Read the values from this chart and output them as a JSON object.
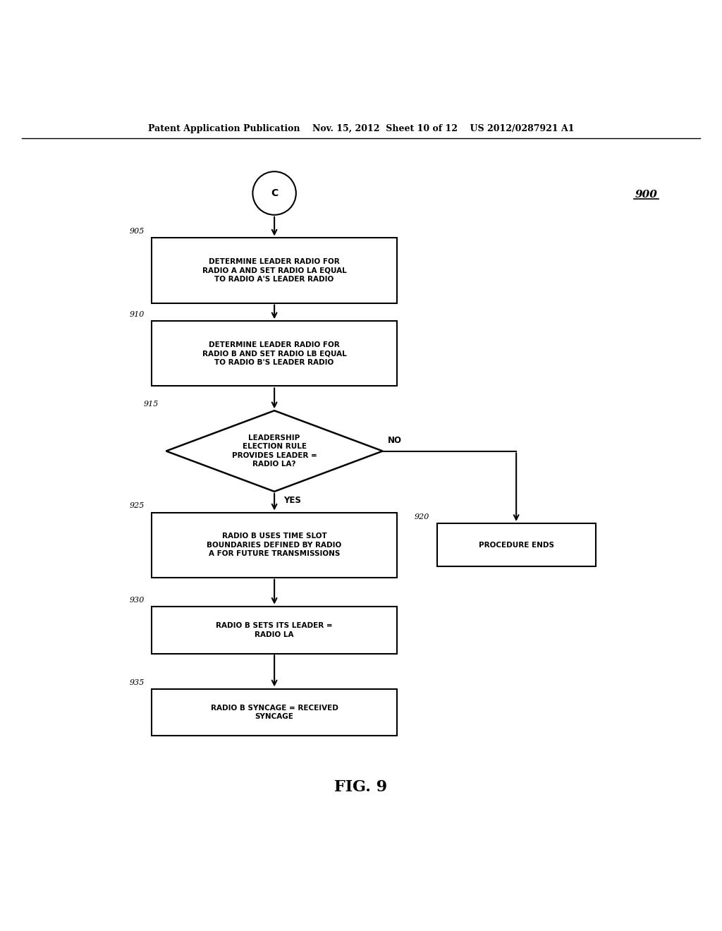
{
  "title_line": "Patent Application Publication    Nov. 15, 2012  Sheet 10 of 12    US 2012/0287921 A1",
  "fig_label": "FIG. 9",
  "diagram_label": "900",
  "background_color": "#ffffff",
  "font_size_box": 7.5,
  "font_size_step": 8,
  "font_size_header": 9,
  "font_size_fig": 16
}
